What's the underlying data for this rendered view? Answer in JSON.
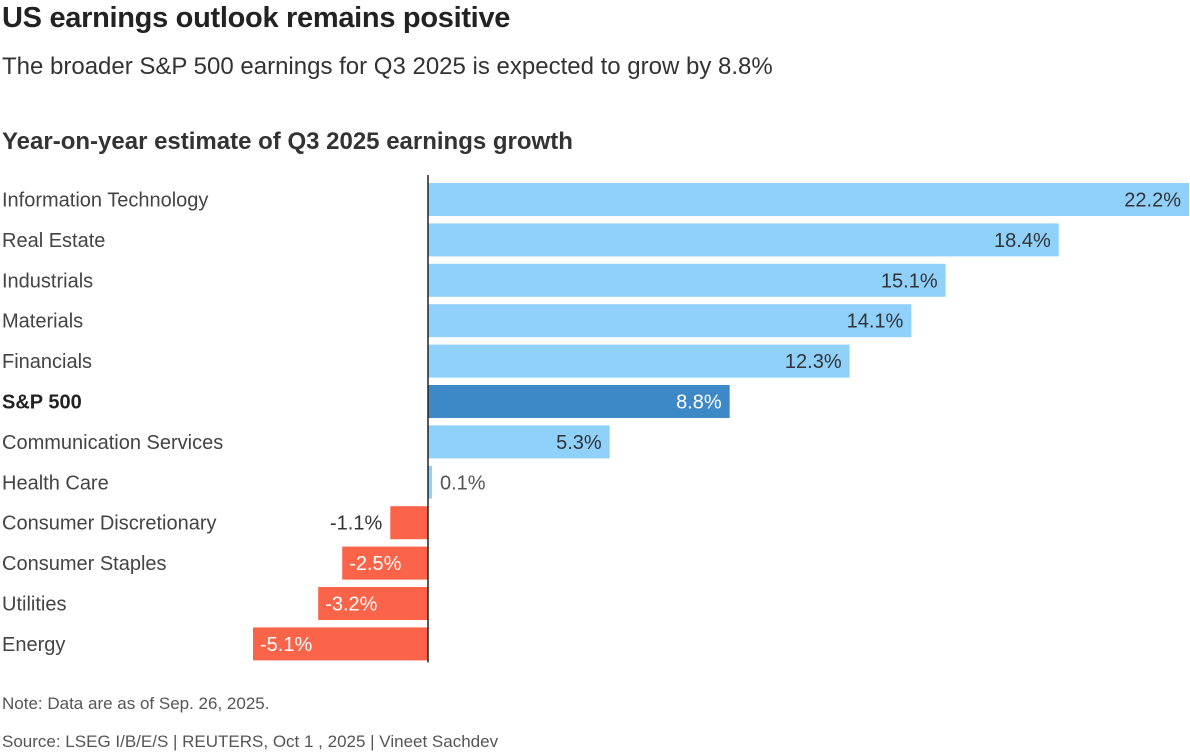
{
  "header": {
    "title": "US earnings outlook remains positive",
    "subtitle": "The broader S&P 500 earnings for Q3 2025 is expected to grow by 8.8%"
  },
  "footer": {
    "note": "Note: Data are as of Sep. 26, 2025.",
    "source": "Source: LSEG I/B/E/S | REUTERS, Oct 1 , 2025 | Vineet Sachdev"
  },
  "chart_data": {
    "type": "bar",
    "orientation": "horizontal",
    "title": "Year-on-year estimate of Q3 2025 earnings growth",
    "categories": [
      "Information Technology",
      "Real Estate",
      "Industrials",
      "Materials",
      "Financials",
      "S&P 500",
      "Communication Services",
      "Health Care",
      "Consumer Discretionary",
      "Consumer Staples",
      "Utilities",
      "Energy"
    ],
    "values": [
      22.2,
      18.4,
      15.1,
      14.1,
      12.3,
      8.8,
      5.3,
      0.1,
      -1.1,
      -2.5,
      -3.2,
      -5.1
    ],
    "value_labels": [
      "22.2%",
      "18.4%",
      "15.1%",
      "14.1%",
      "12.3%",
      "8.8%",
      "5.3%",
      "0.1%",
      "-1.1%",
      "-2.5%",
      "-3.2%",
      "-5.1%"
    ],
    "highlight": "S&P 500",
    "unit": "%",
    "xlim": [
      -5.1,
      22.2
    ],
    "grid": false,
    "colors": {
      "positive": "#8fd1fb",
      "highlight": "#3d88c7",
      "negative": "#fc644a",
      "zero_line": "#222222"
    }
  }
}
